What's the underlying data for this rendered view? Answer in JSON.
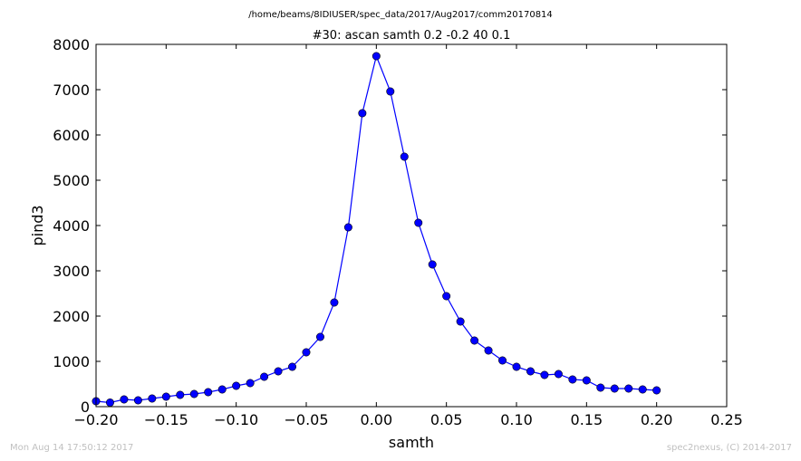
{
  "footer": {
    "timestamp": "Mon Aug 14 17:50:12 2017",
    "credit": "spec2nexus, (C) 2014-2017"
  },
  "chart_data": {
    "type": "line",
    "suptitle": "/home/beams/8IDIUSER/spec_data/2017/Aug2017/comm20170814",
    "title": "#30: ascan  samth 0.2 -0.2  40 0.1",
    "xlabel": "samth",
    "ylabel": "pind3",
    "xlim": [
      -0.2,
      0.25
    ],
    "ylim": [
      0,
      8000
    ],
    "xticks": [
      -0.2,
      -0.15,
      -0.1,
      -0.05,
      0.0,
      0.05,
      0.1,
      0.15,
      0.2,
      0.25
    ],
    "xtick_labels": [
      "−0.20",
      "−0.15",
      "−0.10",
      "−0.05",
      "0.00",
      "0.05",
      "0.10",
      "0.15",
      "0.20",
      "0.25"
    ],
    "yticks": [
      0,
      1000,
      2000,
      3000,
      4000,
      5000,
      6000,
      7000,
      8000
    ],
    "ytick_labels": [
      "0",
      "1000",
      "2000",
      "3000",
      "4000",
      "5000",
      "6000",
      "7000",
      "8000"
    ],
    "grid": false,
    "color": "#0000ff",
    "series": [
      {
        "x": [
          -0.2,
          -0.19,
          -0.18,
          -0.17,
          -0.16,
          -0.15,
          -0.14,
          -0.13,
          -0.12,
          -0.11,
          -0.1,
          -0.09,
          -0.08,
          -0.07,
          -0.06,
          -0.05,
          -0.04,
          -0.03,
          -0.02,
          -0.01,
          0.0,
          0.01,
          0.02,
          0.03,
          0.04,
          0.05,
          0.06,
          0.07,
          0.08,
          0.09,
          0.1,
          0.11,
          0.12,
          0.13,
          0.14,
          0.15,
          0.16,
          0.17,
          0.18,
          0.19,
          0.2
        ],
        "y": [
          120,
          90,
          160,
          140,
          180,
          220,
          260,
          280,
          320,
          380,
          460,
          520,
          660,
          780,
          880,
          1200,
          1540,
          2300,
          3960,
          6480,
          7740,
          6960,
          5520,
          4060,
          3140,
          2440,
          1880,
          1460,
          1240,
          1020,
          880,
          780,
          700,
          720,
          600,
          580,
          420,
          400,
          400,
          380,
          360
        ]
      }
    ]
  }
}
